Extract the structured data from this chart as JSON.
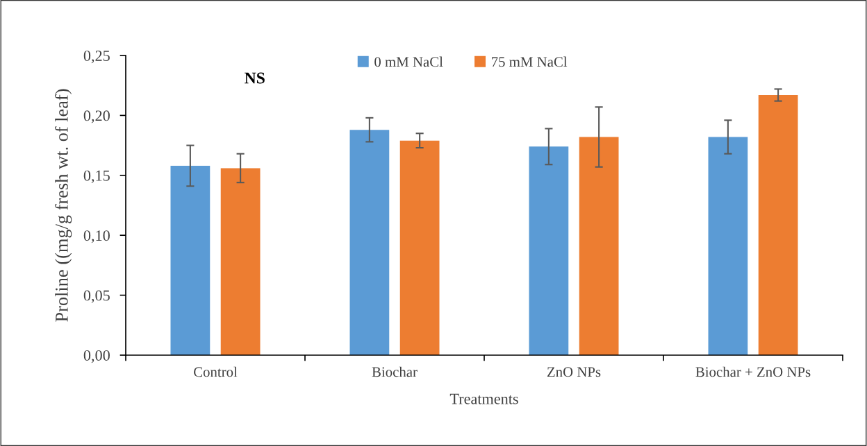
{
  "chart_data": {
    "type": "bar",
    "categories": [
      "Control",
      "Biochar",
      "ZnO NPs",
      "Biochar + ZnO NPs"
    ],
    "series": [
      {
        "name": "0 mM NaCl",
        "color": "#5b9bd5",
        "values": [
          0.158,
          0.188,
          0.174,
          0.182
        ],
        "errors": [
          0.017,
          0.01,
          0.015,
          0.014
        ]
      },
      {
        "name": "75 mM NaCl",
        "color": "#ed7d31",
        "values": [
          0.156,
          0.179,
          0.182,
          0.217
        ],
        "errors": [
          0.012,
          0.006,
          0.025,
          0.005
        ]
      }
    ],
    "xlabel": "Treatments",
    "ylabel": "Proline ((mg/g fresh wt. of leaf)",
    "ylim": [
      0,
      0.25
    ],
    "yticks": [
      {
        "value": 0,
        "label": "0,00"
      },
      {
        "value": 0.05,
        "label": "0,05"
      },
      {
        "value": 0.1,
        "label": "0,10"
      },
      {
        "value": 0.15,
        "label": "0,15"
      },
      {
        "value": 0.2,
        "label": "0,20"
      },
      {
        "value": 0.25,
        "label": "0,25"
      }
    ],
    "annotations": [
      "NS"
    ],
    "legend": "top",
    "grid": false
  }
}
